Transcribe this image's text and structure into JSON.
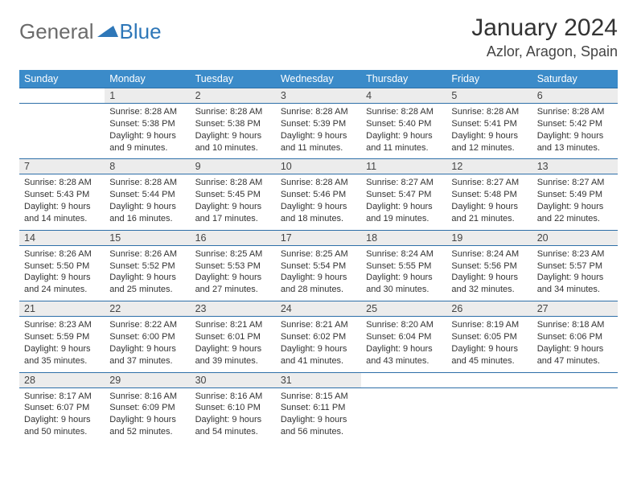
{
  "brand": {
    "part1": "General",
    "part2": "Blue"
  },
  "title": "January 2024",
  "location": "Azlor, Aragon, Spain",
  "colors": {
    "header_bg": "#3b8bc9",
    "row_border": "#2e6fa8",
    "daynum_bg": "#ececec",
    "brand_gray": "#6b6b6b",
    "brand_blue": "#2e77b8"
  },
  "day_headers": [
    "Sunday",
    "Monday",
    "Tuesday",
    "Wednesday",
    "Thursday",
    "Friday",
    "Saturday"
  ],
  "weeks": [
    [
      {
        "num": "",
        "empty": true,
        "sunrise": "",
        "sunset": "",
        "daylight": ""
      },
      {
        "num": "1",
        "sunrise": "Sunrise: 8:28 AM",
        "sunset": "Sunset: 5:38 PM",
        "daylight": "Daylight: 9 hours and 9 minutes."
      },
      {
        "num": "2",
        "sunrise": "Sunrise: 8:28 AM",
        "sunset": "Sunset: 5:38 PM",
        "daylight": "Daylight: 9 hours and 10 minutes."
      },
      {
        "num": "3",
        "sunrise": "Sunrise: 8:28 AM",
        "sunset": "Sunset: 5:39 PM",
        "daylight": "Daylight: 9 hours and 11 minutes."
      },
      {
        "num": "4",
        "sunrise": "Sunrise: 8:28 AM",
        "sunset": "Sunset: 5:40 PM",
        "daylight": "Daylight: 9 hours and 11 minutes."
      },
      {
        "num": "5",
        "sunrise": "Sunrise: 8:28 AM",
        "sunset": "Sunset: 5:41 PM",
        "daylight": "Daylight: 9 hours and 12 minutes."
      },
      {
        "num": "6",
        "sunrise": "Sunrise: 8:28 AM",
        "sunset": "Sunset: 5:42 PM",
        "daylight": "Daylight: 9 hours and 13 minutes."
      }
    ],
    [
      {
        "num": "7",
        "sunrise": "Sunrise: 8:28 AM",
        "sunset": "Sunset: 5:43 PM",
        "daylight": "Daylight: 9 hours and 14 minutes."
      },
      {
        "num": "8",
        "sunrise": "Sunrise: 8:28 AM",
        "sunset": "Sunset: 5:44 PM",
        "daylight": "Daylight: 9 hours and 16 minutes."
      },
      {
        "num": "9",
        "sunrise": "Sunrise: 8:28 AM",
        "sunset": "Sunset: 5:45 PM",
        "daylight": "Daylight: 9 hours and 17 minutes."
      },
      {
        "num": "10",
        "sunrise": "Sunrise: 8:28 AM",
        "sunset": "Sunset: 5:46 PM",
        "daylight": "Daylight: 9 hours and 18 minutes."
      },
      {
        "num": "11",
        "sunrise": "Sunrise: 8:27 AM",
        "sunset": "Sunset: 5:47 PM",
        "daylight": "Daylight: 9 hours and 19 minutes."
      },
      {
        "num": "12",
        "sunrise": "Sunrise: 8:27 AM",
        "sunset": "Sunset: 5:48 PM",
        "daylight": "Daylight: 9 hours and 21 minutes."
      },
      {
        "num": "13",
        "sunrise": "Sunrise: 8:27 AM",
        "sunset": "Sunset: 5:49 PM",
        "daylight": "Daylight: 9 hours and 22 minutes."
      }
    ],
    [
      {
        "num": "14",
        "sunrise": "Sunrise: 8:26 AM",
        "sunset": "Sunset: 5:50 PM",
        "daylight": "Daylight: 9 hours and 24 minutes."
      },
      {
        "num": "15",
        "sunrise": "Sunrise: 8:26 AM",
        "sunset": "Sunset: 5:52 PM",
        "daylight": "Daylight: 9 hours and 25 minutes."
      },
      {
        "num": "16",
        "sunrise": "Sunrise: 8:25 AM",
        "sunset": "Sunset: 5:53 PM",
        "daylight": "Daylight: 9 hours and 27 minutes."
      },
      {
        "num": "17",
        "sunrise": "Sunrise: 8:25 AM",
        "sunset": "Sunset: 5:54 PM",
        "daylight": "Daylight: 9 hours and 28 minutes."
      },
      {
        "num": "18",
        "sunrise": "Sunrise: 8:24 AM",
        "sunset": "Sunset: 5:55 PM",
        "daylight": "Daylight: 9 hours and 30 minutes."
      },
      {
        "num": "19",
        "sunrise": "Sunrise: 8:24 AM",
        "sunset": "Sunset: 5:56 PM",
        "daylight": "Daylight: 9 hours and 32 minutes."
      },
      {
        "num": "20",
        "sunrise": "Sunrise: 8:23 AM",
        "sunset": "Sunset: 5:57 PM",
        "daylight": "Daylight: 9 hours and 34 minutes."
      }
    ],
    [
      {
        "num": "21",
        "sunrise": "Sunrise: 8:23 AM",
        "sunset": "Sunset: 5:59 PM",
        "daylight": "Daylight: 9 hours and 35 minutes."
      },
      {
        "num": "22",
        "sunrise": "Sunrise: 8:22 AM",
        "sunset": "Sunset: 6:00 PM",
        "daylight": "Daylight: 9 hours and 37 minutes."
      },
      {
        "num": "23",
        "sunrise": "Sunrise: 8:21 AM",
        "sunset": "Sunset: 6:01 PM",
        "daylight": "Daylight: 9 hours and 39 minutes."
      },
      {
        "num": "24",
        "sunrise": "Sunrise: 8:21 AM",
        "sunset": "Sunset: 6:02 PM",
        "daylight": "Daylight: 9 hours and 41 minutes."
      },
      {
        "num": "25",
        "sunrise": "Sunrise: 8:20 AM",
        "sunset": "Sunset: 6:04 PM",
        "daylight": "Daylight: 9 hours and 43 minutes."
      },
      {
        "num": "26",
        "sunrise": "Sunrise: 8:19 AM",
        "sunset": "Sunset: 6:05 PM",
        "daylight": "Daylight: 9 hours and 45 minutes."
      },
      {
        "num": "27",
        "sunrise": "Sunrise: 8:18 AM",
        "sunset": "Sunset: 6:06 PM",
        "daylight": "Daylight: 9 hours and 47 minutes."
      }
    ],
    [
      {
        "num": "28",
        "sunrise": "Sunrise: 8:17 AM",
        "sunset": "Sunset: 6:07 PM",
        "daylight": "Daylight: 9 hours and 50 minutes."
      },
      {
        "num": "29",
        "sunrise": "Sunrise: 8:16 AM",
        "sunset": "Sunset: 6:09 PM",
        "daylight": "Daylight: 9 hours and 52 minutes."
      },
      {
        "num": "30",
        "sunrise": "Sunrise: 8:16 AM",
        "sunset": "Sunset: 6:10 PM",
        "daylight": "Daylight: 9 hours and 54 minutes."
      },
      {
        "num": "31",
        "sunrise": "Sunrise: 8:15 AM",
        "sunset": "Sunset: 6:11 PM",
        "daylight": "Daylight: 9 hours and 56 minutes."
      },
      {
        "num": "",
        "empty": true,
        "sunrise": "",
        "sunset": "",
        "daylight": ""
      },
      {
        "num": "",
        "empty": true,
        "sunrise": "",
        "sunset": "",
        "daylight": ""
      },
      {
        "num": "",
        "empty": true,
        "sunrise": "",
        "sunset": "",
        "daylight": ""
      }
    ]
  ]
}
